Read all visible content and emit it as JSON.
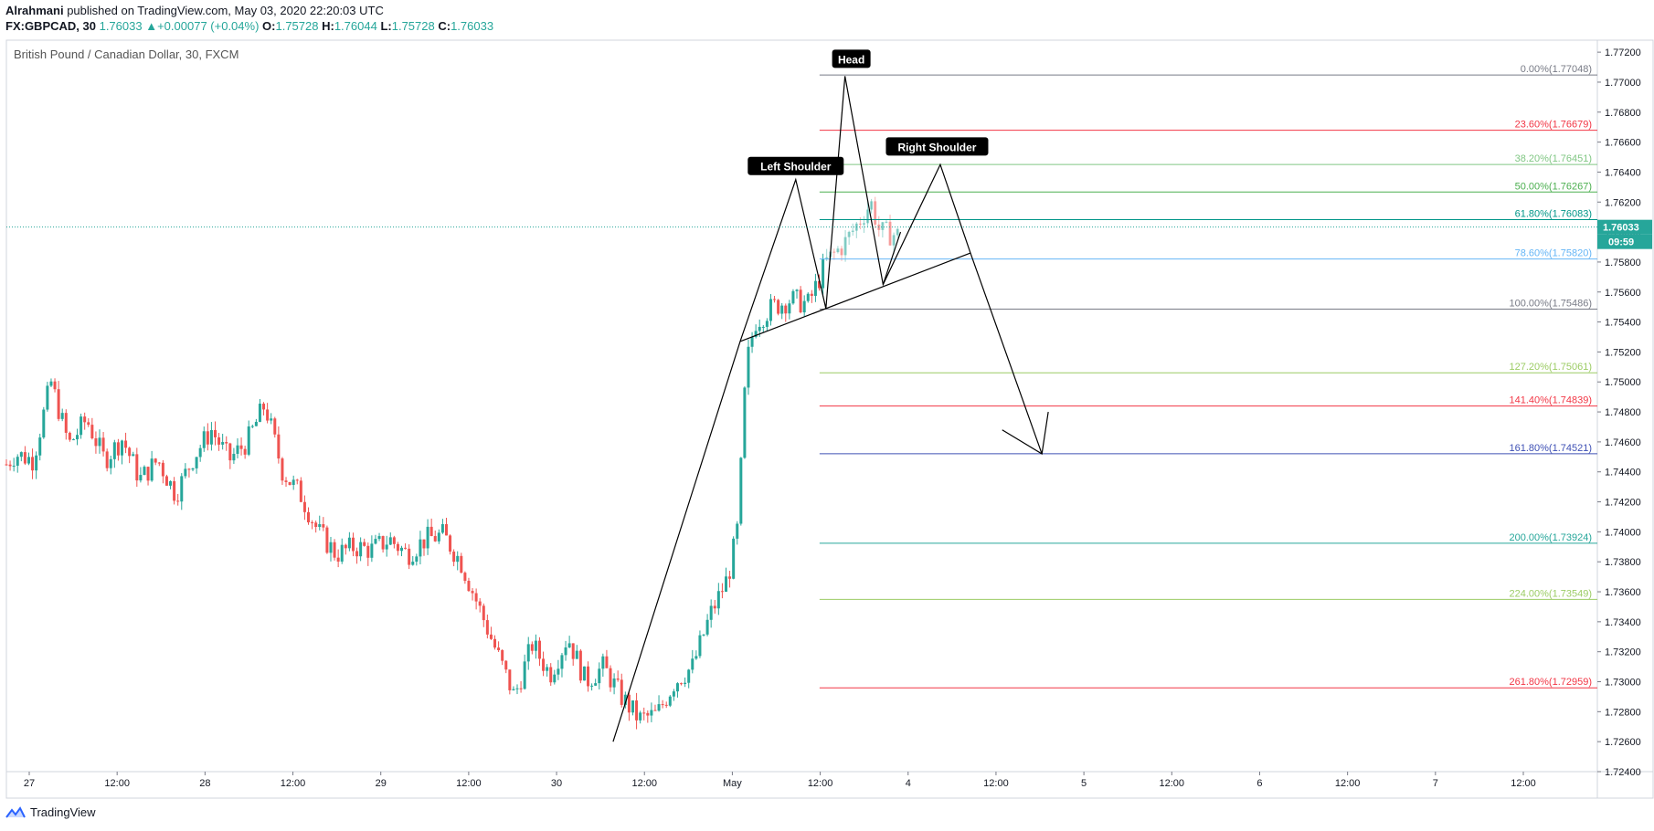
{
  "header": {
    "author": "Alrahmani",
    "published_text": "published on TradingView.com, May 03, 2020 22:20:03 UTC",
    "symbol": "FX:GBPCAD, 30",
    "last_price": "1.76033",
    "change": "+0.00077 (+0.04%)",
    "o_label": "O:",
    "o_value": "1.75728",
    "h_label": "H:",
    "h_value": "1.76044",
    "l_label": "L:",
    "l_value": "1.75728",
    "c_label": "C:",
    "c_value": "1.76033"
  },
  "chart_title": "British Pound / Canadian Dollar, 30, FXCM",
  "brand": "TradingView",
  "colors": {
    "up": "#26a69a",
    "down": "#ef5350",
    "price_line": "#26a69a"
  },
  "chart_data": {
    "type": "candlestick",
    "title": "British Pound / Canadian Dollar, 30, FXCM",
    "ylim": [
      1.724,
      1.7728
    ],
    "y_ticks": [
      "1.77200",
      "1.77000",
      "1.76800",
      "1.76600",
      "1.76400",
      "1.76200",
      "1.76000",
      "1.75800",
      "1.75600",
      "1.75400",
      "1.75200",
      "1.75000",
      "1.74800",
      "1.74600",
      "1.74400",
      "1.74200",
      "1.74000",
      "1.73800",
      "1.73600",
      "1.73400",
      "1.73200",
      "1.73000",
      "1.72800",
      "1.72600",
      "1.72400"
    ],
    "x_ticks": [
      "27",
      "12:00",
      "28",
      "12:00",
      "29",
      "12:00",
      "30",
      "12:00",
      "May",
      "12:00",
      "4",
      "12:00",
      "5",
      "12:00",
      "6",
      "12:00",
      "7",
      "12:00"
    ],
    "current_price": "1.76033",
    "countdown": "09:59",
    "price_path": [
      [
        0,
        1.7445
      ],
      [
        0.01,
        1.7452
      ],
      [
        0.03,
        1.7448
      ],
      [
        0.05,
        1.75
      ],
      [
        0.07,
        1.7458
      ],
      [
        0.09,
        1.7475
      ],
      [
        0.11,
        1.7448
      ],
      [
        0.13,
        1.7462
      ],
      [
        0.15,
        1.7435
      ],
      [
        0.17,
        1.7448
      ],
      [
        0.19,
        1.7425
      ],
      [
        0.21,
        1.745
      ],
      [
        0.23,
        1.7468
      ],
      [
        0.25,
        1.7448
      ],
      [
        0.27,
        1.746
      ],
      [
        0.29,
        1.7485
      ],
      [
        0.31,
        1.744
      ],
      [
        0.33,
        1.7425
      ],
      [
        0.35,
        1.74
      ],
      [
        0.37,
        1.7385
      ],
      [
        0.39,
        1.739
      ],
      [
        0.41,
        1.7388
      ],
      [
        0.43,
        1.7395
      ],
      [
        0.45,
        1.7385
      ],
      [
        0.47,
        1.7395
      ],
      [
        0.49,
        1.7398
      ],
      [
        0.51,
        1.738
      ],
      [
        0.53,
        1.735
      ],
      [
        0.55,
        1.732
      ],
      [
        0.57,
        1.729
      ],
      [
        0.59,
        1.7325
      ],
      [
        0.61,
        1.7305
      ],
      [
        0.63,
        1.733
      ],
      [
        0.65,
        1.73
      ],
      [
        0.67,
        1.731
      ],
      [
        0.69,
        1.729
      ],
      [
        0.71,
        1.7275
      ],
      [
        0.73,
        1.7278
      ],
      [
        0.75,
        1.73
      ],
      [
        0.77,
        1.731
      ],
      [
        0.79,
        1.7345
      ],
      [
        0.81,
        1.737
      ],
      [
        0.82,
        1.74
      ],
      [
        0.825,
        1.745
      ],
      [
        0.83,
        1.751
      ],
      [
        0.84,
        1.754
      ],
      [
        0.86,
        1.755
      ],
      [
        0.88,
        1.7555
      ],
      [
        0.9,
        1.7552
      ],
      [
        0.92,
        1.758
      ],
      [
        0.94,
        1.7592
      ],
      [
        0.96,
        1.761
      ],
      [
        0.97,
        1.762
      ],
      [
        0.98,
        1.76
      ],
      [
        1.0,
        1.7598
      ]
    ],
    "fibonacci": [
      {
        "label": "0.00%(1.77048)",
        "value": 1.77048,
        "color": "#787b86"
      },
      {
        "label": "23.60%(1.76679)",
        "value": 1.76679,
        "color": "#f23645"
      },
      {
        "label": "38.20%(1.76451)",
        "value": 1.76451,
        "color": "#81c784"
      },
      {
        "label": "50.00%(1.76267)",
        "value": 1.76267,
        "color": "#4caf50"
      },
      {
        "label": "61.80%(1.76083)",
        "value": 1.76083,
        "color": "#009688"
      },
      {
        "label": "78.60%(1.75820)",
        "value": 1.7582,
        "color": "#64b5f6"
      },
      {
        "label": "100.00%(1.75486)",
        "value": 1.75486,
        "color": "#787b86"
      },
      {
        "label": "127.20%(1.75061)",
        "value": 1.75061,
        "color": "#9ccc65"
      },
      {
        "label": "141.40%(1.74839)",
        "value": 1.74839,
        "color": "#f23645"
      },
      {
        "label": "161.80%(1.74521)",
        "value": 1.74521,
        "color": "#3f51b5"
      },
      {
        "label": "200.00%(1.73924)",
        "value": 1.73924,
        "color": "#26a69a"
      },
      {
        "label": "224.00%(1.73549)",
        "value": 1.73549,
        "color": "#9ccc65"
      },
      {
        "label": "261.80%(1.72959)",
        "value": 1.72959,
        "color": "#f23645"
      }
    ],
    "annotations": [
      {
        "text": "Head",
        "x_time": 0.532,
        "y": 1.7715
      },
      {
        "text": "Left Shoulder",
        "x_time": 0.497,
        "y": 1.76435
      },
      {
        "text": "Right Shoulder",
        "x_time": 0.586,
        "y": 1.76565
      }
    ],
    "pattern_lines": [
      [
        [
          0.382,
          1.726
        ],
        [
          0.462,
          1.7527
        ],
        [
          0.497,
          1.7635
        ],
        [
          0.516,
          1.7549
        ],
        [
          0.528,
          1.7704
        ],
        [
          0.552,
          1.7565
        ],
        [
          0.588,
          1.7645
        ],
        [
          0.607,
          1.7586
        ],
        [
          0.652,
          1.7452
        ]
      ],
      [
        [
          0.462,
          1.7527
        ],
        [
          0.607,
          1.7586
        ]
      ],
      [
        [
          0.552,
          1.7565
        ],
        [
          0.563,
          1.76
        ]
      ]
    ],
    "projection_arrow": [
      [
        0.627,
        1.7468
      ],
      [
        0.652,
        1.7452
      ],
      [
        0.656,
        1.748
      ]
    ]
  }
}
